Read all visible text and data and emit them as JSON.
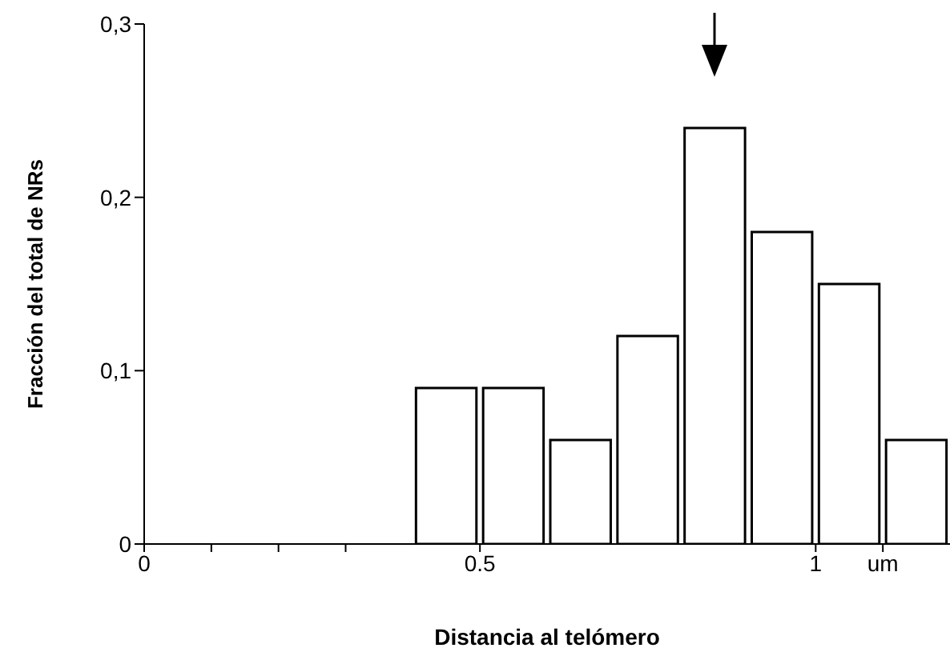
{
  "chart_data": {
    "type": "histogram",
    "xlabel": "Distancia al telómero",
    "ylabel": "Fracción del total de NRs",
    "bins": [
      0.4,
      0.5,
      0.6,
      0.7,
      0.8,
      0.9,
      1.0,
      1.1,
      1.2
    ],
    "values": [
      0.09,
      0.09,
      0.06,
      0.12,
      0.24,
      0.18,
      0.15,
      0.06
    ],
    "color": "#ffffff",
    "xlim": [
      0,
      1.2
    ],
    "xticks": [
      0,
      {
        "value": 0.1,
        "label": null
      },
      {
        "value": 0.2,
        "label": null
      },
      {
        "value": 0.3,
        "label": null
      },
      {
        "value": 0.5,
        "label": "0.5"
      },
      1,
      {
        "value": 1.1,
        "label": "um"
      }
    ],
    "ylim": [
      0,
      0.3
    ],
    "yticks": [
      0,
      {
        "value": 0.1,
        "label": "0,1"
      },
      {
        "value": 0.2,
        "label": "0,2"
      },
      {
        "value": 0.3,
        "label": "0,3"
      }
    ],
    "grid": false,
    "legend": false
  }
}
